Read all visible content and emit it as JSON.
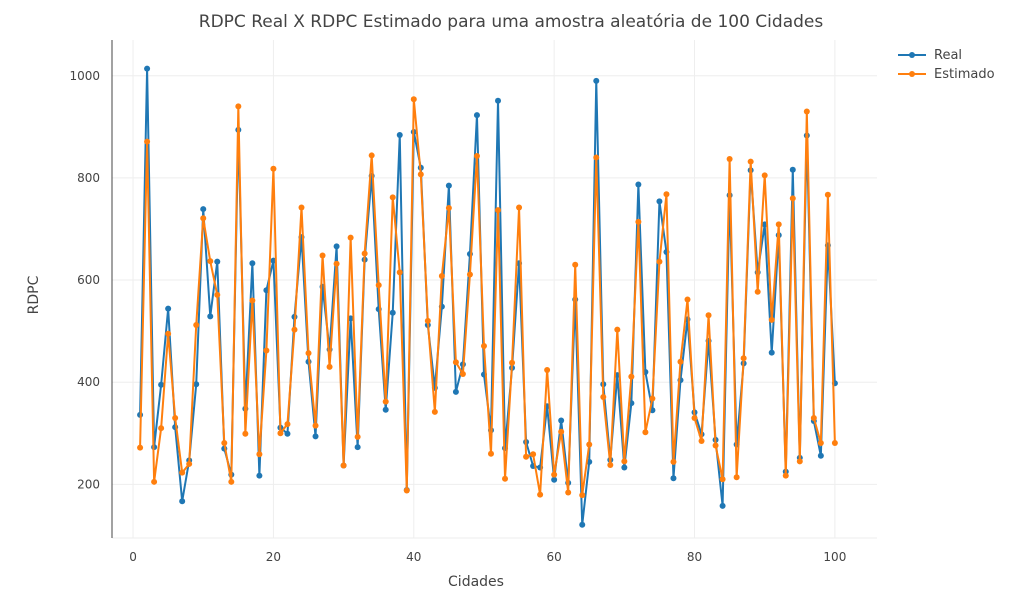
{
  "chart_data": {
    "type": "line",
    "title": "RDPC Real X RDPC Estimado para uma amostra aleatória de 100 Cidades",
    "xlabel": "Cidades",
    "ylabel": "RDPC",
    "xlim": [
      -3,
      106
    ],
    "ylim": [
      95,
      1070
    ],
    "xticks": [
      0,
      20,
      40,
      60,
      80,
      100
    ],
    "yticks": [
      200,
      400,
      600,
      800,
      1000
    ],
    "grid": true,
    "legend_position": "top-right",
    "x": [
      1,
      2,
      3,
      4,
      5,
      6,
      7,
      8,
      9,
      10,
      11,
      12,
      13,
      14,
      15,
      16,
      17,
      18,
      19,
      20,
      21,
      22,
      23,
      24,
      25,
      26,
      27,
      28,
      29,
      30,
      31,
      32,
      33,
      34,
      35,
      36,
      37,
      38,
      39,
      40,
      41,
      42,
      43,
      44,
      45,
      46,
      47,
      48,
      49,
      50,
      51,
      52,
      53,
      54,
      55,
      56,
      57,
      58,
      59,
      60,
      61,
      62,
      63,
      64,
      65,
      66,
      67,
      68,
      69,
      70,
      71,
      72,
      73,
      74,
      75,
      76,
      77,
      78,
      79,
      80,
      81,
      82,
      83,
      84,
      85,
      86,
      87,
      88,
      89,
      90,
      91,
      92,
      93,
      94,
      95,
      96,
      97,
      98,
      99,
      100
    ],
    "series": [
      {
        "name": "Real",
        "color": "#1f77b4",
        "values": [
          336,
          1014,
          273,
          395,
          544,
          312,
          167,
          247,
          396,
          739,
          529,
          636,
          270,
          219,
          894,
          348,
          633,
          217,
          580,
          638,
          311,
          299,
          528,
          684,
          440,
          294,
          587,
          464,
          666,
          237,
          525,
          273,
          640,
          804,
          543,
          346,
          536,
          884,
          189,
          890,
          820,
          512,
          389,
          548,
          785,
          381,
          435,
          651,
          923,
          415,
          306,
          951,
          271,
          428,
          633,
          283,
          236,
          233,
          353,
          209,
          325,
          203,
          562,
          121,
          244,
          990,
          396,
          248,
          414,
          233,
          359,
          787,
          420,
          345,
          754,
          655,
          212,
          404,
          523,
          341,
          298,
          481,
          287,
          158,
          766,
          278,
          437,
          815,
          615,
          709,
          458,
          688,
          225,
          816,
          252,
          883,
          324,
          256,
          668,
          398
        ]
      },
      {
        "name": "Estimado",
        "color": "#ff7f0e",
        "values": [
          272,
          871,
          205,
          310,
          495,
          330,
          223,
          240,
          512,
          721,
          637,
          571,
          281,
          205,
          940,
          299,
          560,
          259,
          462,
          818,
          300,
          318,
          503,
          742,
          457,
          315,
          648,
          430,
          632,
          237,
          683,
          293,
          652,
          844,
          590,
          362,
          762,
          615,
          188,
          954,
          807,
          520,
          342,
          608,
          741,
          439,
          416,
          611,
          843,
          471,
          260,
          737,
          211,
          438,
          742,
          254,
          259,
          180,
          424,
          219,
          303,
          184,
          630,
          179,
          278,
          840,
          371,
          238,
          503,
          245,
          411,
          714,
          302,
          368,
          636,
          768,
          244,
          440,
          562,
          330,
          285,
          531,
          276,
          210,
          837,
          214,
          447,
          832,
          577,
          805,
          522,
          709,
          217,
          760,
          245,
          930,
          330,
          281,
          767,
          281
        ]
      }
    ]
  }
}
